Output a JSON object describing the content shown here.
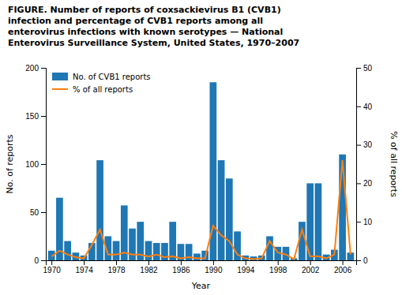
{
  "chart_data": {
    "type": "bar",
    "title": "FIGURE. Number of reports of coxsackievirus B1 (CVB1)\ninfection and percentage of CVB1 reports among all\nenterovirus infections with known serotypes — National\nEnterovirus Surveillance System, United States, 1970–2007",
    "x": [
      1970,
      1971,
      1972,
      1973,
      1974,
      1975,
      1976,
      1977,
      1978,
      1979,
      1980,
      1981,
      1982,
      1983,
      1984,
      1985,
      1986,
      1987,
      1988,
      1989,
      1990,
      1991,
      1992,
      1993,
      1994,
      1995,
      1996,
      1997,
      1998,
      1999,
      2000,
      2001,
      2002,
      2003,
      2004,
      2005,
      2006,
      2007
    ],
    "series": [
      {
        "name": "No. of CVB1 reports",
        "type": "bar",
        "values": [
          10,
          65,
          20,
          8,
          5,
          18,
          104,
          25,
          20,
          57,
          33,
          40,
          20,
          18,
          18,
          40,
          17,
          17,
          7,
          10,
          185,
          104,
          85,
          30,
          5,
          4,
          5,
          25,
          14,
          14,
          2,
          40,
          80,
          80,
          6,
          11,
          110,
          8
        ]
      },
      {
        "name": "% of all reports",
        "type": "line",
        "axis": "y2",
        "values": [
          1.0,
          2.5,
          1.5,
          0.8,
          0.5,
          4.0,
          8.0,
          1.5,
          1.5,
          2.0,
          1.5,
          1.5,
          1.0,
          1.5,
          0.8,
          1.0,
          0.5,
          0.8,
          0.5,
          0.5,
          9.0,
          6.5,
          5.0,
          1.5,
          0.5,
          0.3,
          0.5,
          5.0,
          2.0,
          1.5,
          0.3,
          8.0,
          1.0,
          1.0,
          0.5,
          1.5,
          26.0,
          1.5
        ]
      }
    ],
    "xlabel": "Year",
    "ylabel": "No. of reports",
    "y2label": "% of all reports",
    "xlim": [
      1969.3,
      2007.7
    ],
    "xticks": [
      1970,
      1974,
      1978,
      1982,
      1986,
      1990,
      1994,
      1998,
      2002,
      2006
    ],
    "ylim": [
      0,
      200
    ],
    "yticks": [
      0,
      50,
      100,
      150,
      200
    ],
    "y2lim": [
      0,
      50
    ],
    "y2ticks": [
      0,
      10,
      20,
      30,
      40,
      50
    ],
    "legend": "upper left",
    "grid": false
  }
}
